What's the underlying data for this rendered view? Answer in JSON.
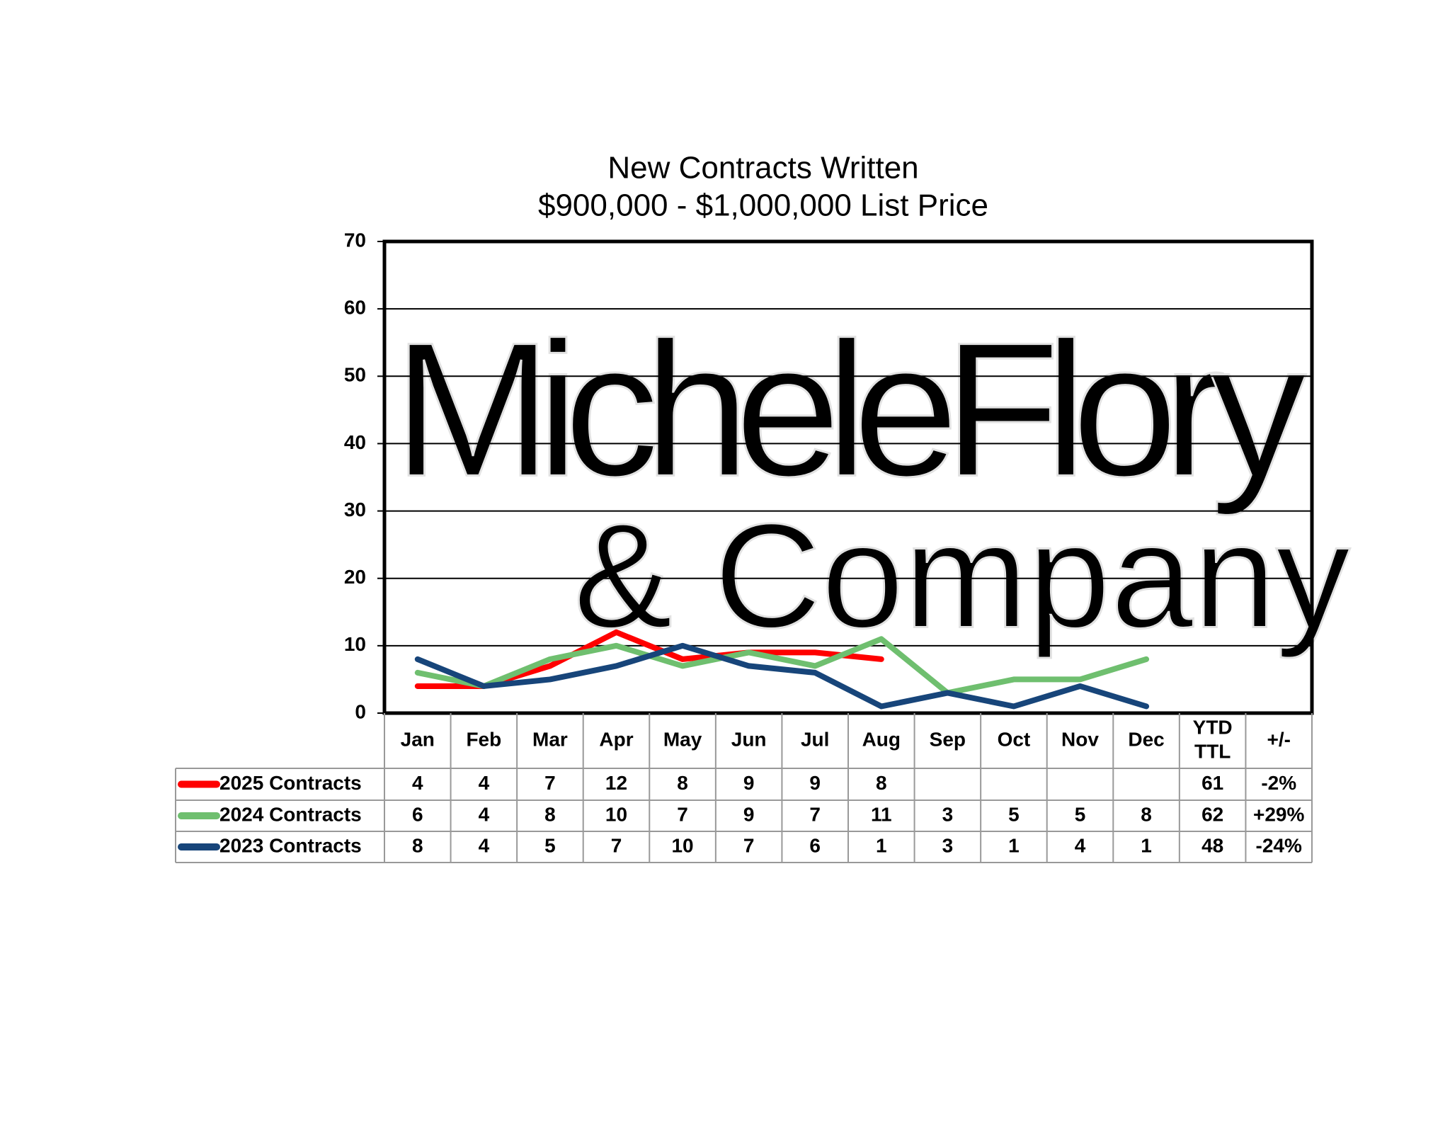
{
  "chart_data": {
    "type": "line",
    "title": "New Contracts Written",
    "subtitle": "$900,000 - $1,000,000 List Price",
    "watermark": [
      "MicheleFlory",
      "& Company"
    ],
    "categories": [
      "Jan",
      "Feb",
      "Mar",
      "Apr",
      "May",
      "Jun",
      "Jul",
      "Aug",
      "Sep",
      "Oct",
      "Nov",
      "Dec"
    ],
    "series": [
      {
        "name": "2025 Contracts",
        "color": "#ff0000",
        "values": [
          4,
          4,
          7,
          12,
          8,
          9,
          9,
          8,
          null,
          null,
          null,
          null
        ],
        "ytd": 61,
        "change": "-2%"
      },
      {
        "name": "2024 Contracts",
        "color": "#6fbf6f",
        "values": [
          6,
          4,
          8,
          10,
          7,
          9,
          7,
          11,
          3,
          5,
          5,
          8
        ],
        "ytd": 62,
        "change": "+29%"
      },
      {
        "name": "2023 Contracts",
        "color": "#17457a",
        "values": [
          8,
          4,
          5,
          7,
          10,
          7,
          6,
          1,
          3,
          1,
          4,
          1
        ],
        "ytd": 48,
        "change": "-24%"
      }
    ],
    "ytd_header": [
      "YTD",
      "TTL"
    ],
    "change_header": "+/-",
    "ylim": [
      0,
      70
    ],
    "yticks": [
      0,
      10,
      20,
      30,
      40,
      50,
      60,
      70
    ],
    "grid": true
  }
}
